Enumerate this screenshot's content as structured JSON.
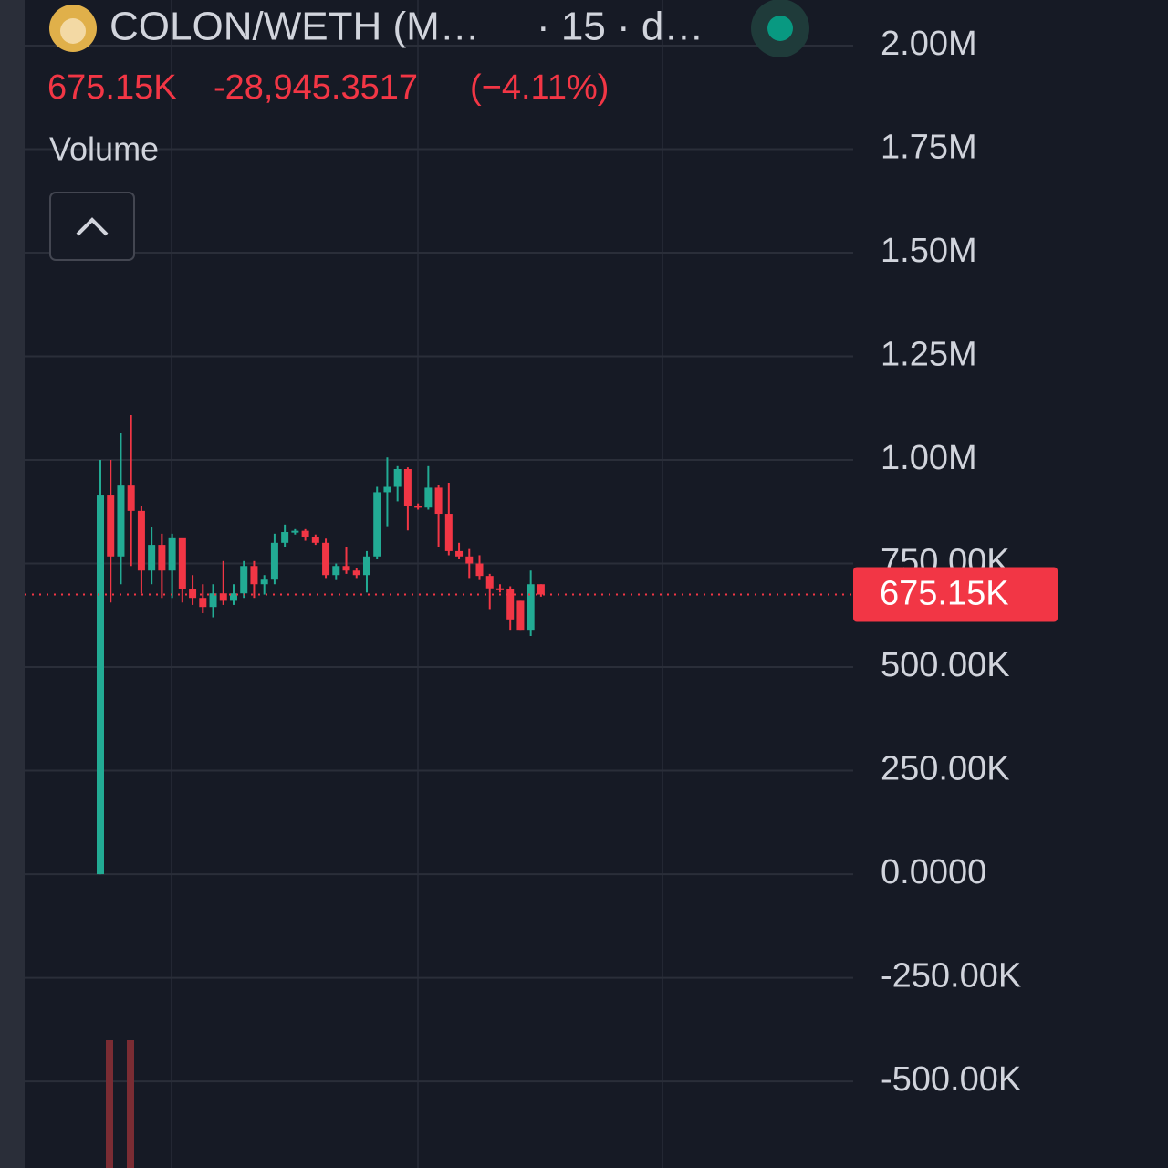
{
  "chart_data": {
    "type": "candlestick",
    "title": "COLON/WETH (M…",
    "interval": "· 15 · d…",
    "last_price": {
      "value": 675150,
      "label": "675.15K"
    },
    "change": "-28,945.3517",
    "change_percent": "(−4.11%)",
    "indicator": "Volume",
    "up_color": "#22ab94",
    "down_color": "#f23645",
    "open": [
      0,
      914000,
      767000,
      938000,
      877000,
      733000,
      795000,
      733000,
      811000,
      689000,
      667000,
      645000,
      678000,
      660000,
      678000,
      744000,
      700000,
      711000,
      800000,
      826000,
      829000,
      815000,
      800000,
      722000,
      744000,
      733000,
      722000,
      767000,
      922000,
      935000,
      978000,
      889000,
      885000,
      933000,
      870000,
      780000,
      767000,
      750000,
      720000,
      690000,
      689000,
      660000,
      590000,
      700000
    ],
    "high": [
      1000000,
      1000000,
      1064000,
      1108000,
      888000,
      837000,
      822000,
      822000,
      800000,
      722000,
      700000,
      700000,
      756000,
      700000,
      756000,
      756000,
      722000,
      822000,
      844000,
      833000,
      833000,
      820000,
      810000,
      750000,
      790000,
      740000,
      780000,
      935000,
      1006000,
      985000,
      982000,
      895000,
      985000,
      940000,
      945000,
      800000,
      785000,
      770000,
      725000,
      700000,
      695000,
      660000,
      733000,
      700000
    ],
    "low": [
      0,
      656000,
      700000,
      744000,
      678000,
      700000,
      667000,
      667000,
      656000,
      650000,
      630000,
      620000,
      650000,
      650000,
      667000,
      667000,
      675000,
      700000,
      790000,
      820000,
      805000,
      795000,
      715000,
      710000,
      725000,
      715000,
      680000,
      760000,
      840000,
      900000,
      830000,
      880000,
      880000,
      790000,
      770000,
      760000,
      715000,
      710000,
      640000,
      680000,
      590000,
      590000,
      575000,
      670000
    ],
    "close": [
      914000,
      767000,
      938000,
      877000,
      733000,
      795000,
      733000,
      811000,
      689000,
      667000,
      645000,
      678000,
      660000,
      678000,
      744000,
      700000,
      711000,
      800000,
      826000,
      829000,
      815000,
      800000,
      722000,
      744000,
      733000,
      722000,
      767000,
      922000,
      935000,
      978000,
      889000,
      885000,
      933000,
      870000,
      780000,
      767000,
      750000,
      720000,
      690000,
      689000,
      615000,
      590000,
      700000,
      675150
    ],
    "ylim": [
      -709000,
      2110000
    ],
    "yticks": [
      {
        "value": -500000,
        "label": "-500.00K"
      },
      {
        "value": -250000,
        "label": "-250.00K"
      },
      {
        "value": 0,
        "label": "0.0000"
      },
      {
        "value": 250000,
        "label": "250.00K"
      },
      {
        "value": 500000,
        "label": "500.00K"
      },
      {
        "value": 750000,
        "label": "750.00K"
      },
      {
        "value": 1000000,
        "label": "1.00M"
      },
      {
        "value": 1250000,
        "label": "1.25M"
      },
      {
        "value": 1500000,
        "label": "1.50M"
      },
      {
        "value": 1750000,
        "label": "1.75M"
      },
      {
        "value": 2000000,
        "label": "2.00M"
      }
    ],
    "grid": true
  }
}
